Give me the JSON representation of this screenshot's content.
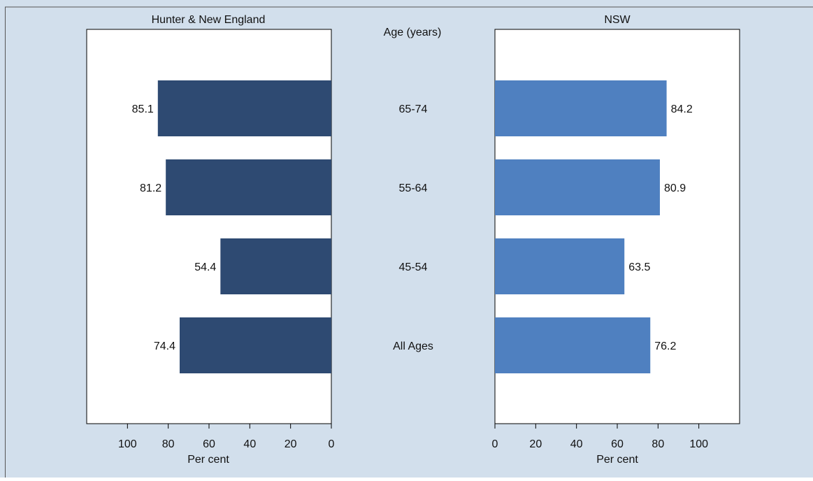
{
  "chart_data": [
    {
      "type": "bar",
      "orientation": "horizontal",
      "direction": "leftward",
      "title": "Hunter & New England",
      "xlabel": "Per cent",
      "xlim": [
        0,
        120
      ],
      "xticks": [
        100,
        80,
        60,
        40,
        20,
        0
      ],
      "categories": [
        "65-74",
        "55-64",
        "45-54",
        "All Ages"
      ],
      "values": [
        85.1,
        81.2,
        54.4,
        74.4
      ],
      "color": "#2e4a72",
      "grid": false
    },
    {
      "type": "bar",
      "orientation": "horizontal",
      "direction": "rightward",
      "title": "NSW",
      "xlabel": "Per cent",
      "xlim": [
        0,
        120
      ],
      "xticks": [
        0,
        20,
        40,
        60,
        80,
        100
      ],
      "categories": [
        "65-74",
        "55-64",
        "45-54",
        "All Ages"
      ],
      "values": [
        84.2,
        80.9,
        63.5,
        76.2
      ],
      "color": "#4f80c0",
      "grid": false
    }
  ],
  "center_axis": {
    "title": "Age (years)",
    "labels": [
      "65-74",
      "55-64",
      "45-54",
      "All Ages"
    ]
  },
  "colors": {
    "background": "#d2dfec",
    "panel": "#ffffff",
    "left_bars": "#2e4a72",
    "right_bars": "#4f80c0"
  }
}
